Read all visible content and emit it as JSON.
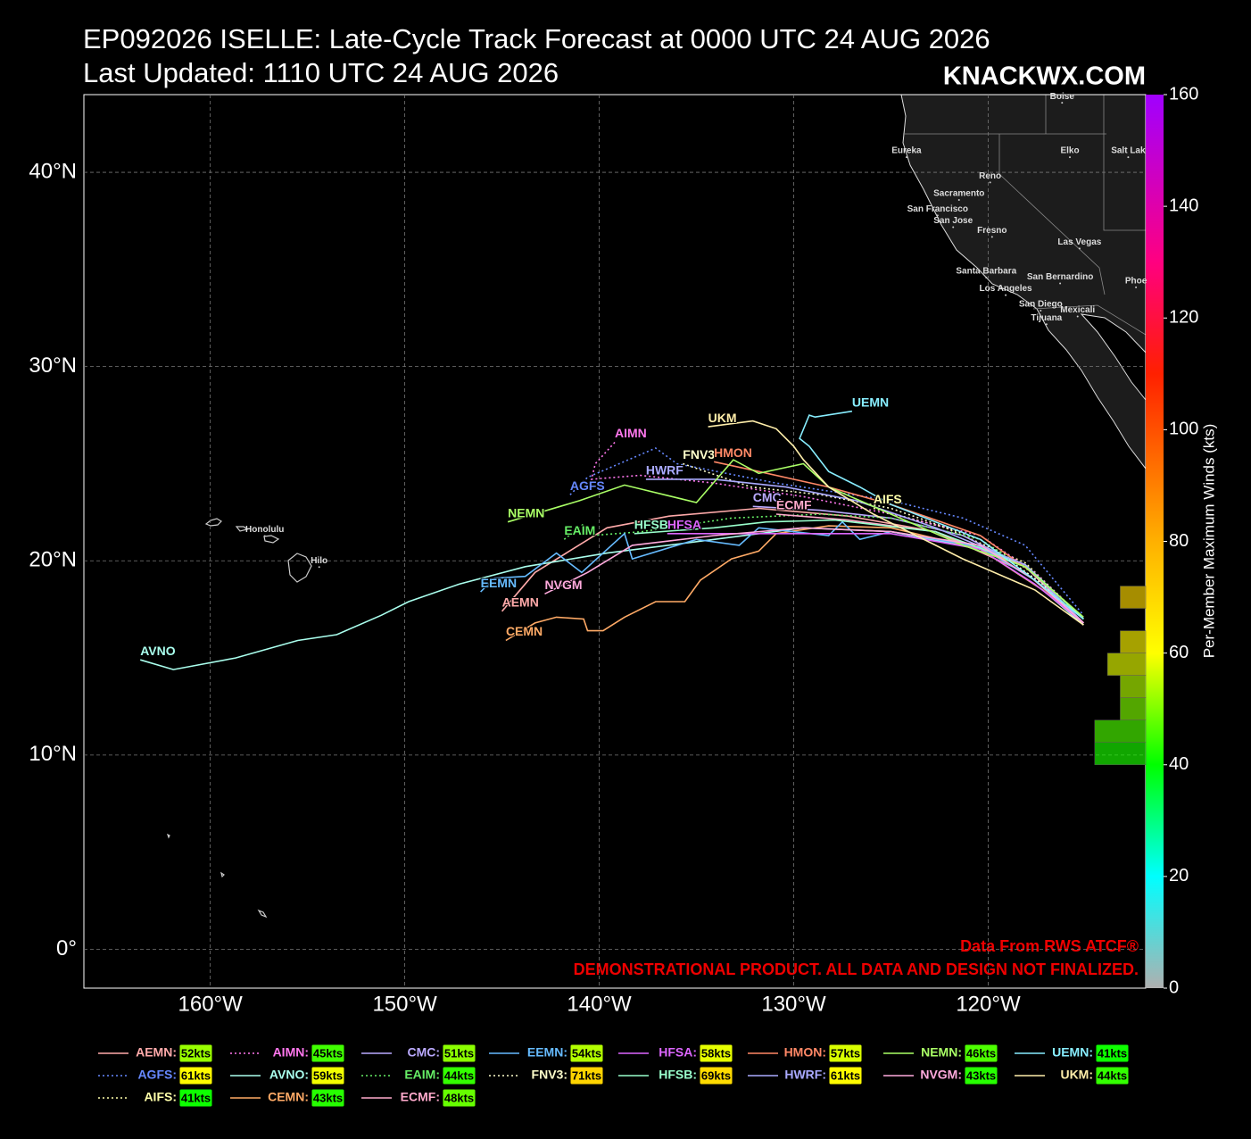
{
  "chart_data": {
    "type": "track-map",
    "title": "EP092026 ISELLE: Late-Cycle Track Forecast at 0000 UTC 24 AUG 2026",
    "subtitle": "Last Updated: 1110 UTC 24 AUG 2026",
    "brand": "KNACKWX.COM",
    "source": "Data From RWS ATCF®",
    "disclaimer": "DEMONSTRATIONAL PRODUCT. ALL DATA AND DESIGN NOT FINALIZED.",
    "xlim": [
      -166.5,
      -111.9
    ],
    "ylim": [
      -2,
      44
    ],
    "xticks": [
      {
        "value": -160,
        "label": "160°W"
      },
      {
        "value": -150,
        "label": "150°W"
      },
      {
        "value": -140,
        "label": "140°W"
      },
      {
        "value": -130,
        "label": "130°W"
      },
      {
        "value": -120,
        "label": "120°W"
      }
    ],
    "yticks": [
      {
        "value": 0,
        "label": "0°"
      },
      {
        "value": 10,
        "label": "10°N"
      },
      {
        "value": 20,
        "label": "20°N"
      },
      {
        "value": 30,
        "label": "30°N"
      },
      {
        "value": 40,
        "label": "40°N"
      }
    ],
    "grid": true,
    "colorbar": {
      "label": "Per-Member Maximum Winds (kts)",
      "lim": [
        0,
        160
      ],
      "ticks": [
        0,
        20,
        40,
        60,
        80,
        100,
        120,
        140,
        160
      ],
      "stops": [
        0,
        20,
        40,
        60,
        80,
        110,
        130,
        160
      ],
      "colors": [
        "#b0b0b0",
        "#00ffff",
        "#00ff00",
        "#ffff00",
        "#ffb000",
        "#ff2000",
        "#ff0080",
        "#a000ff"
      ],
      "bins": [
        40,
        44,
        48,
        52,
        56,
        60,
        64,
        68,
        72
      ],
      "counts": [
        4,
        4,
        2,
        2,
        3,
        2,
        0,
        2
      ]
    },
    "series": [
      {
        "name": "AEMN",
        "legend": "AEMN:",
        "color": "#ffaaaa",
        "dashed": false,
        "wind": 52,
        "wind_label": "52kts",
        "x": [
          -145.0,
          -143.3,
          -139.6,
          -136.4,
          -131.8,
          -127.2,
          -122.7,
          -118.1,
          -115.1
        ],
        "values": [
          17.4,
          19.4,
          21.7,
          22.3,
          22.7,
          22.3,
          21.5,
          19.4,
          16.8
        ]
      },
      {
        "name": "AGFS",
        "legend": "AGFS:",
        "color": "#6688ff",
        "dashed": true,
        "wind": 61,
        "wind_label": "61kts",
        "x": [
          -141.5,
          -140.6,
          -137.1,
          -136.0,
          -130.9,
          -125.0,
          -121.3,
          -118.1,
          -115.1
        ],
        "values": [
          23.4,
          24.3,
          25.8,
          25.0,
          24.0,
          23.1,
          22.2,
          20.8,
          17.2
        ]
      },
      {
        "name": "AIFS",
        "legend": "AIFS:",
        "color": "#ffffaa",
        "dashed": true,
        "wind": 41,
        "wind_label": "41kts",
        "x": [
          -125.9,
          -122.2,
          -118.1,
          -115.1
        ],
        "values": [
          22.7,
          21.7,
          19.9,
          17.0
        ]
      },
      {
        "name": "AIMN",
        "legend": "AIMN:",
        "color": "#ff77ee",
        "dashed": true,
        "wind": 45,
        "wind_label": "45kts",
        "x": [
          -139.2,
          -140.2,
          -140.4,
          -137.9,
          -134.1,
          -129.5,
          -125.0,
          -120.4,
          -117.6,
          -115.1
        ],
        "values": [
          26.1,
          25.0,
          24.2,
          24.4,
          24.0,
          23.3,
          22.4,
          21.3,
          19.4,
          17.0
        ]
      },
      {
        "name": "AVNO",
        "legend": "AVNO:",
        "color": "#aaffee",
        "dashed": false,
        "wind": 59,
        "wind_label": "59kts",
        "x": [
          -163.6,
          -161.9,
          -158.7,
          -155.5,
          -153.5,
          -151.2,
          -149.8,
          -147.2,
          -143.8,
          -139.6,
          -134.1,
          -129.5,
          -125.0,
          -120.4,
          -117.2,
          -115.1
        ],
        "values": [
          14.9,
          14.4,
          15.0,
          15.9,
          16.2,
          17.2,
          17.9,
          18.8,
          19.7,
          20.4,
          21.1,
          21.7,
          21.5,
          20.6,
          18.5,
          16.7
        ]
      },
      {
        "name": "CEMN",
        "legend": "CEMN:",
        "color": "#ffaa66",
        "dashed": false,
        "wind": 43,
        "wind_label": "43kts",
        "x": [
          -144.8,
          -143.3,
          -142.2,
          -140.8,
          -140.6,
          -139.8,
          -138.7,
          -137.1,
          -135.6,
          -134.8,
          -133.2,
          -131.8,
          -130.9,
          -128.2,
          -125.0,
          -120.4,
          -117.2,
          -115.1
        ],
        "values": [
          15.9,
          16.8,
          17.1,
          17.0,
          16.4,
          16.4,
          17.1,
          17.9,
          17.9,
          19.0,
          20.1,
          20.5,
          21.4,
          21.8,
          21.7,
          20.6,
          18.5,
          16.8
        ]
      },
      {
        "name": "CMC",
        "legend": "CMC:",
        "color": "#bbaaff",
        "dashed": false,
        "wind": 51,
        "wind_label": "51kts",
        "x": [
          -132.1,
          -128.6,
          -125.0,
          -121.3,
          -118.1,
          -115.1
        ],
        "values": [
          22.8,
          22.6,
          22.2,
          21.3,
          19.7,
          16.8
        ]
      },
      {
        "name": "EAIM",
        "legend": "EAIM:",
        "color": "#66ee66",
        "dashed": true,
        "wind": 44,
        "wind_label": "44kts",
        "x": [
          -141.8,
          -140.8,
          -140.4,
          -137.8,
          -133.2,
          -128.6,
          -125.0,
          -120.4,
          -117.6,
          -115.1
        ],
        "values": [
          21.1,
          21.9,
          21.3,
          21.5,
          22.2,
          22.4,
          22.2,
          21.1,
          19.3,
          17.0
        ]
      },
      {
        "name": "ECMF",
        "legend": "ECMF:",
        "color": "#ffaacc",
        "dashed": false,
        "wind": 48,
        "wind_label": "48kts",
        "x": [
          -130.9,
          -127.2,
          -122.7,
          -118.1,
          -115.1
        ],
        "values": [
          22.4,
          22.1,
          21.5,
          19.7,
          16.8
        ]
      },
      {
        "name": "EEMN",
        "legend": "EEMN:",
        "color": "#66bbff",
        "dashed": false,
        "wind": 54,
        "wind_label": "54kts",
        "x": [
          -146.1,
          -145.4,
          -143.8,
          -142.2,
          -140.9,
          -138.7,
          -138.3,
          -135.0,
          -132.8,
          -131.8,
          -128.2,
          -127.5,
          -126.6,
          -125.0,
          -120.4,
          -117.6,
          -115.1
        ],
        "values": [
          18.4,
          19.1,
          19.2,
          20.4,
          19.4,
          21.4,
          20.1,
          21.1,
          20.8,
          21.7,
          21.3,
          22.0,
          21.1,
          21.5,
          20.7,
          19.0,
          17.0
        ]
      },
      {
        "name": "FNV3",
        "legend": "FNV3:",
        "color": "#ffffcc",
        "dashed": true,
        "wind": 71,
        "wind_label": "71kts",
        "x": [
          -135.7,
          -132.2,
          -128.6,
          -125.0,
          -120.4,
          -117.2,
          -115.1
        ],
        "values": [
          25.0,
          23.8,
          23.4,
          22.7,
          21.1,
          18.8,
          16.7
        ]
      },
      {
        "name": "HFSA",
        "legend": "HFSA:",
        "color": "#dd66ff",
        "dashed": false,
        "wind": 58,
        "wind_label": "58kts",
        "x": [
          -136.5,
          -133.2,
          -129.5,
          -125.0,
          -120.4,
          -117.6,
          -115.1
        ],
        "values": [
          21.4,
          21.4,
          21.4,
          21.4,
          20.6,
          18.8,
          16.8
        ]
      },
      {
        "name": "HFSB",
        "legend": "HFSB:",
        "color": "#99ffcc",
        "dashed": false,
        "wind": 69,
        "wind_label": "69kts",
        "x": [
          -138.2,
          -134.1,
          -131.4,
          -127.9,
          -122.7,
          -118.1,
          -115.1
        ],
        "values": [
          21.4,
          21.7,
          22.0,
          22.1,
          21.5,
          19.8,
          17.0
        ]
      },
      {
        "name": "HMON",
        "legend": "HMON:",
        "color": "#ff8866",
        "dashed": false,
        "wind": 57,
        "wind_label": "57kts",
        "x": [
          -134.1,
          -131.8,
          -128.2,
          -125.0,
          -120.4,
          -117.6,
          -115.1
        ],
        "values": [
          25.1,
          24.6,
          23.8,
          22.9,
          21.3,
          19.3,
          16.8
        ]
      },
      {
        "name": "HWRF",
        "legend": "HWRF:",
        "color": "#aaaaff",
        "dashed": false,
        "wind": 61,
        "wind_label": "61kts",
        "x": [
          -137.6,
          -134.1,
          -130.4,
          -126.8,
          -122.7,
          -118.1,
          -115.1
        ],
        "values": [
          24.2,
          24.2,
          23.8,
          23.1,
          21.7,
          19.8,
          16.8
        ]
      },
      {
        "name": "NEMN",
        "legend": "NEMN:",
        "color": "#aaff66",
        "dashed": false,
        "wind": 46,
        "wind_label": "46kts",
        "x": [
          -144.7,
          -141.0,
          -138.7,
          -135.0,
          -133.1,
          -131.8,
          -130.9,
          -129.5,
          -128.2,
          -125.0,
          -121.3,
          -118.1,
          -115.1
        ],
        "values": [
          22.0,
          23.1,
          23.9,
          23.0,
          25.2,
          24.5,
          24.7,
          25.0,
          23.8,
          22.4,
          20.8,
          19.7,
          17.1
        ]
      },
      {
        "name": "NVGM",
        "legend": "NVGM:",
        "color": "#ffaadd",
        "dashed": false,
        "wind": 43,
        "wind_label": "43kts",
        "x": [
          -142.8,
          -140.6,
          -138.3,
          -134.1,
          -129.5,
          -125.0,
          -120.4,
          -117.6,
          -115.1
        ],
        "values": [
          18.3,
          19.4,
          20.8,
          21.3,
          21.7,
          21.5,
          20.8,
          19.0,
          16.8
        ]
      },
      {
        "name": "UEMN",
        "legend": "UEMN:",
        "color": "#88eeff",
        "dashed": false,
        "wind": 41,
        "wind_label": "41kts",
        "x": [
          -127.0,
          -128.9,
          -129.2,
          -129.7,
          -129.2,
          -128.2,
          -126.6,
          -125.0,
          -120.4,
          -117.6,
          -115.1
        ],
        "values": [
          27.7,
          27.4,
          27.5,
          26.3,
          25.9,
          24.6,
          23.8,
          22.9,
          21.1,
          19.0,
          17.0
        ]
      },
      {
        "name": "UKM",
        "legend": "UKM:",
        "color": "#ffeeaa",
        "dashed": false,
        "wind": 44,
        "wind_label": "44kts",
        "x": [
          -134.4,
          -132.1,
          -130.9,
          -130.0,
          -129.5,
          -128.2,
          -125.9,
          -121.3,
          -117.6,
          -115.1
        ],
        "values": [
          26.9,
          27.2,
          26.8,
          25.9,
          25.2,
          23.8,
          22.4,
          20.1,
          18.5,
          16.7
        ]
      }
    ],
    "cities": [
      {
        "name": "Boise",
        "lon": -116.2,
        "lat": 43.9
      },
      {
        "name": "Eureka",
        "lon": -124.2,
        "lat": 41.1
      },
      {
        "name": "Elko",
        "lon": -115.8,
        "lat": 41.1
      },
      {
        "name": "Salt Lak",
        "lon": -112.8,
        "lat": 41.1
      },
      {
        "name": "Reno",
        "lon": -119.9,
        "lat": 39.8
      },
      {
        "name": "Sacramento",
        "lon": -121.5,
        "lat": 38.9
      },
      {
        "name": "San Francisco",
        "lon": -122.6,
        "lat": 38.1
      },
      {
        "name": "San Jose",
        "lon": -121.8,
        "lat": 37.5
      },
      {
        "name": "Fresno",
        "lon": -119.8,
        "lat": 37.0
      },
      {
        "name": "Las Vegas",
        "lon": -115.3,
        "lat": 36.4
      },
      {
        "name": "Santa Barbara",
        "lon": -120.1,
        "lat": 34.9
      },
      {
        "name": "San Bernardino",
        "lon": -116.3,
        "lat": 34.6
      },
      {
        "name": "Los Angeles",
        "lon": -119.1,
        "lat": 34.0
      },
      {
        "name": "San Diego",
        "lon": -117.3,
        "lat": 33.2
      },
      {
        "name": "Mexicali",
        "lon": -115.4,
        "lat": 32.9
      },
      {
        "name": "Tijuana",
        "lon": -117.0,
        "lat": 32.5
      },
      {
        "name": "Phoe",
        "lon": -112.4,
        "lat": 34.4
      },
      {
        "name": "Honolulu",
        "lon": -157.2,
        "lat": 21.6
      },
      {
        "name": "Hilo",
        "lon": -154.4,
        "lat": 20.0
      }
    ]
  }
}
